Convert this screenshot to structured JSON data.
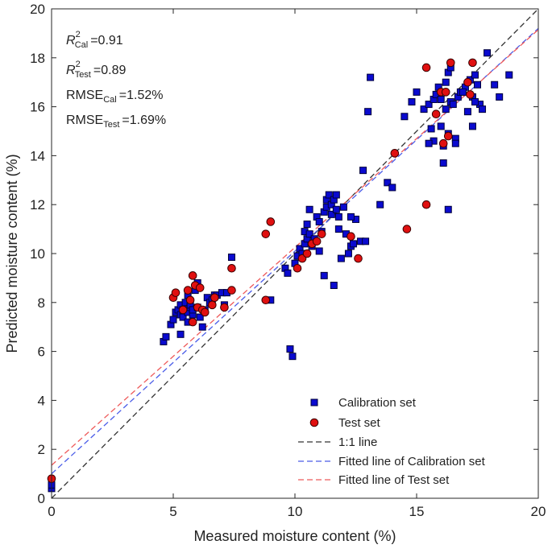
{
  "chart_data": {
    "type": "scatter",
    "xlabel": "Measured moisture content (%)",
    "ylabel": "Predicted moisture content (%)",
    "xlim": [
      0,
      20
    ],
    "ylim": [
      0,
      20
    ],
    "xticks": [
      0,
      5,
      10,
      15,
      20
    ],
    "yticks": [
      0,
      2,
      4,
      6,
      8,
      10,
      12,
      14,
      16,
      18,
      20
    ],
    "stats": {
      "r2_cal": {
        "base": "R",
        "sup": "2",
        "sub": "Cal",
        "value": "=0.91"
      },
      "r2_test": {
        "base": "R",
        "sup": "2",
        "sub": "Test",
        "value": "=0.89"
      },
      "rmse_cal": {
        "base": "RMSE",
        "sub": "Cal",
        "value": "=1.52%"
      },
      "rmse_test": {
        "base": "RMSE",
        "sub": "Test",
        "value": "=1.69%"
      }
    },
    "legend": {
      "position": "bottom-right",
      "calibration": "Calibration set",
      "test": "Test set",
      "one_to_one": "1:1 line",
      "fit_cal": "Fitted line of Calibration set",
      "fit_test": "Fitted line of Test set"
    },
    "colors": {
      "calibration": "#0a0acf",
      "test": "#e01010",
      "one_to_one": "#333333",
      "fit_cal": "#4a5ce8",
      "fit_test": "#ee5a5a"
    },
    "lines": {
      "one_to_one": {
        "slope": 1.0,
        "intercept": 0.0
      },
      "fit_cal": {
        "slope": 0.91,
        "intercept": 1.0
      },
      "fit_test": {
        "slope": 0.89,
        "intercept": 1.35
      }
    },
    "series": [
      {
        "name": "Calibration set",
        "points": [
          [
            0.0,
            0.4
          ],
          [
            0.0,
            0.55
          ],
          [
            4.6,
            6.4
          ],
          [
            4.7,
            6.6
          ],
          [
            4.9,
            7.1
          ],
          [
            5.0,
            7.3
          ],
          [
            5.1,
            7.6
          ],
          [
            5.2,
            7.7
          ],
          [
            5.3,
            7.5
          ],
          [
            5.3,
            7.9
          ],
          [
            5.4,
            7.4
          ],
          [
            5.4,
            7.7
          ],
          [
            5.5,
            7.8
          ],
          [
            5.5,
            8.0
          ],
          [
            5.6,
            7.2
          ],
          [
            5.6,
            7.6
          ],
          [
            5.7,
            7.8
          ],
          [
            5.7,
            7.9
          ],
          [
            5.8,
            7.5
          ],
          [
            5.8,
            7.7
          ],
          [
            5.9,
            8.5
          ],
          [
            6.0,
            8.8
          ],
          [
            6.0,
            7.8
          ],
          [
            6.1,
            7.4
          ],
          [
            6.2,
            7.0
          ],
          [
            6.3,
            7.7
          ],
          [
            6.4,
            8.2
          ],
          [
            6.5,
            8.0
          ],
          [
            6.6,
            8.1
          ],
          [
            6.7,
            8.3
          ],
          [
            6.8,
            8.3
          ],
          [
            7.0,
            8.4
          ],
          [
            7.1,
            7.9
          ],
          [
            7.2,
            8.4
          ],
          [
            7.4,
            9.85
          ],
          [
            5.3,
            6.7
          ],
          [
            5.6,
            8.3
          ],
          [
            9.0,
            8.1
          ],
          [
            9.6,
            9.4
          ],
          [
            9.7,
            9.2
          ],
          [
            9.8,
            6.1
          ],
          [
            9.9,
            5.8
          ],
          [
            10.0,
            9.6
          ],
          [
            10.1,
            9.9
          ],
          [
            10.2,
            10.2
          ],
          [
            10.3,
            10.0
          ],
          [
            10.4,
            10.4
          ],
          [
            10.4,
            10.9
          ],
          [
            10.5,
            10.6
          ],
          [
            10.6,
            10.8
          ],
          [
            10.6,
            11.8
          ],
          [
            10.7,
            10.3
          ],
          [
            10.8,
            10.6
          ],
          [
            10.9,
            11.5
          ],
          [
            11.0,
            11.3
          ],
          [
            11.0,
            10.1
          ],
          [
            11.1,
            10.9
          ],
          [
            11.2,
            11.7
          ],
          [
            11.2,
            9.1
          ],
          [
            11.3,
            11.9
          ],
          [
            11.3,
            12.2
          ],
          [
            11.4,
            12.4
          ],
          [
            11.5,
            11.6
          ],
          [
            11.5,
            12.0
          ],
          [
            11.6,
            12.2
          ],
          [
            11.7,
            11.8
          ],
          [
            11.7,
            12.4
          ],
          [
            11.8,
            11.5
          ],
          [
            11.8,
            11.0
          ],
          [
            11.9,
            9.8
          ],
          [
            12.0,
            11.9
          ],
          [
            12.1,
            10.8
          ],
          [
            12.2,
            10.0
          ],
          [
            12.3,
            10.3
          ],
          [
            12.4,
            10.4
          ],
          [
            12.5,
            11.4
          ],
          [
            12.7,
            10.5
          ],
          [
            12.8,
            13.4
          ],
          [
            12.9,
            10.5
          ],
          [
            11.6,
            8.7
          ],
          [
            10.5,
            11.2
          ],
          [
            12.3,
            11.5
          ],
          [
            13.0,
            15.8
          ],
          [
            13.1,
            17.2
          ],
          [
            13.5,
            12.0
          ],
          [
            13.8,
            12.9
          ],
          [
            14.0,
            12.7
          ],
          [
            14.5,
            15.6
          ],
          [
            14.8,
            16.2
          ],
          [
            15.0,
            16.6
          ],
          [
            15.3,
            15.9
          ],
          [
            15.5,
            16.1
          ],
          [
            15.6,
            15.1
          ],
          [
            15.7,
            16.3
          ],
          [
            15.7,
            14.6
          ],
          [
            15.8,
            16.5
          ],
          [
            15.9,
            16.8
          ],
          [
            16.0,
            15.2
          ],
          [
            16.0,
            16.3
          ],
          [
            16.1,
            14.4
          ],
          [
            16.1,
            13.7
          ],
          [
            16.2,
            17.0
          ],
          [
            16.2,
            15.9
          ],
          [
            16.3,
            17.4
          ],
          [
            16.3,
            14.9
          ],
          [
            16.4,
            16.2
          ],
          [
            16.4,
            17.6
          ],
          [
            16.5,
            16.1
          ],
          [
            16.6,
            14.7
          ],
          [
            16.6,
            14.5
          ],
          [
            16.7,
            16.4
          ],
          [
            16.8,
            16.6
          ],
          [
            17.0,
            16.8
          ],
          [
            17.1,
            15.8
          ],
          [
            17.2,
            17.1
          ],
          [
            17.3,
            16.4
          ],
          [
            17.3,
            15.2
          ],
          [
            17.4,
            17.3
          ],
          [
            17.5,
            16.9
          ],
          [
            17.6,
            16.1
          ],
          [
            17.7,
            15.9
          ],
          [
            17.9,
            18.2
          ],
          [
            18.2,
            16.9
          ],
          [
            18.4,
            16.4
          ],
          [
            18.8,
            17.3
          ],
          [
            16.3,
            11.8
          ],
          [
            15.5,
            14.5
          ],
          [
            16.9,
            16.6
          ],
          [
            17.4,
            16.2
          ]
        ]
      },
      {
        "name": "Test set",
        "points": [
          [
            0.0,
            0.8
          ],
          [
            5.0,
            8.2
          ],
          [
            5.1,
            8.4
          ],
          [
            5.4,
            7.7
          ],
          [
            5.6,
            8.5
          ],
          [
            5.7,
            8.1
          ],
          [
            5.8,
            7.2
          ],
          [
            5.8,
            9.1
          ],
          [
            5.9,
            8.7
          ],
          [
            6.0,
            7.8
          ],
          [
            6.1,
            8.6
          ],
          [
            6.2,
            7.7
          ],
          [
            6.3,
            7.6
          ],
          [
            6.6,
            7.9
          ],
          [
            6.7,
            8.2
          ],
          [
            7.1,
            7.8
          ],
          [
            7.4,
            8.5
          ],
          [
            7.4,
            9.4
          ],
          [
            8.8,
            8.1
          ],
          [
            8.8,
            10.8
          ],
          [
            9.0,
            11.3
          ],
          [
            10.1,
            9.4
          ],
          [
            10.3,
            9.8
          ],
          [
            10.5,
            10.0
          ],
          [
            10.7,
            10.4
          ],
          [
            10.9,
            10.5
          ],
          [
            11.1,
            10.8
          ],
          [
            12.3,
            10.7
          ],
          [
            12.6,
            9.8
          ],
          [
            14.1,
            14.1
          ],
          [
            14.6,
            11.0
          ],
          [
            15.4,
            12.0
          ],
          [
            15.4,
            17.6
          ],
          [
            15.8,
            15.7
          ],
          [
            16.0,
            16.6
          ],
          [
            16.1,
            14.5
          ],
          [
            16.3,
            14.8
          ],
          [
            16.4,
            17.8
          ],
          [
            17.1,
            17.0
          ],
          [
            17.3,
            17.8
          ],
          [
            17.2,
            16.5
          ],
          [
            16.2,
            16.6
          ]
        ]
      }
    ]
  }
}
